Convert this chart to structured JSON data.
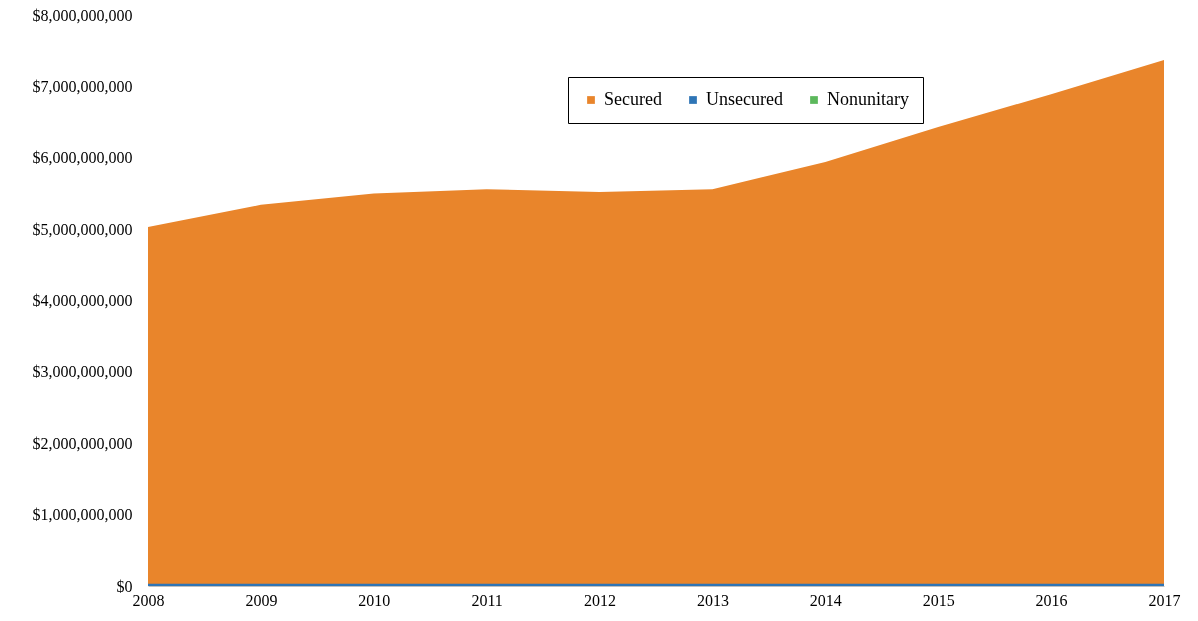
{
  "chart_data": {
    "type": "area",
    "categories": [
      "2008",
      "2009",
      "2010",
      "2011",
      "2012",
      "2013",
      "2014",
      "2015",
      "2016",
      "2017"
    ],
    "series": [
      {
        "name": "Secured",
        "color": "#e9852b",
        "values": [
          5030000000,
          5340000000,
          5500000000,
          5560000000,
          5520000000,
          5560000000,
          5940000000,
          6430000000,
          6890000000,
          7370000000
        ]
      },
      {
        "name": "Unsecured",
        "color": "#2e75b6",
        "values": [
          30000000,
          30000000,
          30000000,
          30000000,
          30000000,
          30000000,
          30000000,
          30000000,
          30000000,
          30000000
        ]
      },
      {
        "name": "Nonunitary",
        "color": "#5cb85c",
        "values": [
          null,
          null,
          null,
          null,
          null,
          null,
          null,
          null,
          null,
          null
        ]
      }
    ],
    "ylim": [
      0,
      8000000000
    ],
    "yticks": [
      {
        "value": 0,
        "label": "$0"
      },
      {
        "value": 1000000000,
        "label": "$1,000,000,000"
      },
      {
        "value": 2000000000,
        "label": "$2,000,000,000"
      },
      {
        "value": 3000000000,
        "label": "$3,000,000,000"
      },
      {
        "value": 4000000000,
        "label": "$4,000,000,000"
      },
      {
        "value": 5000000000,
        "label": "$5,000,000,000"
      },
      {
        "value": 6000000000,
        "label": "$6,000,000,000"
      },
      {
        "value": 7000000000,
        "label": "$7,000,000,000"
      },
      {
        "value": 8000000000,
        "label": "$8,000,000,000"
      }
    ],
    "grid": false,
    "legend": "top"
  }
}
